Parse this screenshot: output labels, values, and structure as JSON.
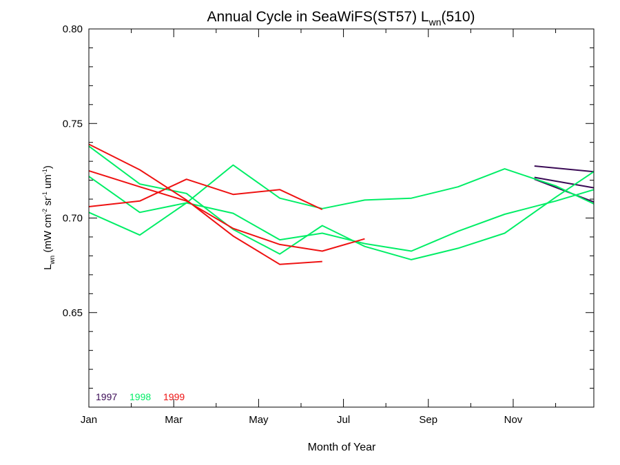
{
  "chart_data": {
    "type": "line",
    "title": {
      "main": "Annual Cycle in SeaWiFS(ST57) L",
      "sub": "wn",
      "suffix": "(510)"
    },
    "xlabel": "Month of Year",
    "ylabel": {
      "main": "L",
      "sub": "wn",
      "units_open": " (mW cm",
      "exp1": "-2",
      "units_mid": " sr",
      "exp2": "-1",
      "units_mid2": " um",
      "exp3": "-1",
      "units_close": ")"
    },
    "xlim": [
      1,
      12.9
    ],
    "ylim": [
      0.6,
      0.8
    ],
    "x_ticks": [
      {
        "value": 1,
        "label": "Jan"
      },
      {
        "value": 3,
        "label": "Mar"
      },
      {
        "value": 5,
        "label": "May"
      },
      {
        "value": 7,
        "label": "Jul"
      },
      {
        "value": 9,
        "label": "Sep"
      },
      {
        "value": 11,
        "label": "Nov"
      }
    ],
    "y_ticks": [
      {
        "value": 0.65,
        "label": "0.65"
      },
      {
        "value": 0.7,
        "label": "0.70"
      },
      {
        "value": 0.75,
        "label": "0.75"
      },
      {
        "value": 0.8,
        "label": "0.80"
      }
    ],
    "grid": false,
    "legend_position": "bottom-left",
    "legend": [
      {
        "label": "1997",
        "color": "#3a0a55"
      },
      {
        "label": "1998",
        "color": "#00ee66"
      },
      {
        "label": "1999",
        "color": "#ee1111"
      }
    ],
    "series": [
      {
        "group": "1997",
        "color": "#3a0a55",
        "x": [
          11.5,
          12.9
        ],
        "y": [
          0.7275,
          0.7245
        ]
      },
      {
        "group": "1997",
        "color": "#3a0a55",
        "x": [
          11.5,
          12.9
        ],
        "y": [
          0.7215,
          0.716
        ]
      },
      {
        "group": "1997",
        "color": "#3a0a55",
        "x": [
          11.5,
          12.9
        ],
        "y": [
          0.7205,
          0.7085
        ]
      },
      {
        "group": "1998",
        "color": "#00ee66",
        "x": [
          1,
          2.2,
          3.3,
          4.4,
          5.5,
          6.5,
          7.5,
          8.6,
          9.7,
          10.8,
          12.0,
          12.9
        ],
        "y": [
          0.738,
          0.718,
          0.713,
          0.694,
          0.681,
          0.696,
          0.685,
          0.678,
          0.684,
          0.692,
          0.711,
          0.7245
        ]
      },
      {
        "group": "1998",
        "color": "#00ee66",
        "x": [
          1,
          2.2,
          3.3,
          4.4,
          5.5,
          6.5,
          7.5,
          8.6,
          9.7,
          10.8,
          12.0,
          12.9
        ],
        "y": [
          0.722,
          0.703,
          0.708,
          0.728,
          0.7105,
          0.705,
          0.7095,
          0.7105,
          0.7165,
          0.726,
          0.717,
          0.7075
        ]
      },
      {
        "group": "1998",
        "color": "#00ee66",
        "x": [
          1,
          2.2,
          3.3,
          4.4,
          5.5,
          6.5,
          7.5,
          8.6,
          9.7,
          10.8,
          12.0,
          12.9
        ],
        "y": [
          0.703,
          0.691,
          0.708,
          0.7025,
          0.6885,
          0.692,
          0.6865,
          0.6825,
          0.693,
          0.702,
          0.709,
          0.715
        ]
      },
      {
        "group": "1999",
        "color": "#ee1111",
        "x": [
          1,
          2.2,
          3.3,
          4.4,
          5.5,
          6.5
        ],
        "y": [
          0.739,
          0.7255,
          0.7095,
          0.6905,
          0.6755,
          0.677
        ]
      },
      {
        "group": "1999",
        "color": "#ee1111",
        "x": [
          1,
          2.2,
          3.3,
          4.4,
          5.5,
          6.5,
          7.5
        ],
        "y": [
          0.725,
          0.7165,
          0.709,
          0.6945,
          0.686,
          0.6825,
          0.689
        ]
      },
      {
        "group": "1999",
        "color": "#ee1111",
        "x": [
          1,
          2.2,
          3.3,
          4.4,
          5.5,
          6.5
        ],
        "y": [
          0.706,
          0.709,
          0.7205,
          0.7125,
          0.715,
          0.7045
        ]
      }
    ]
  }
}
